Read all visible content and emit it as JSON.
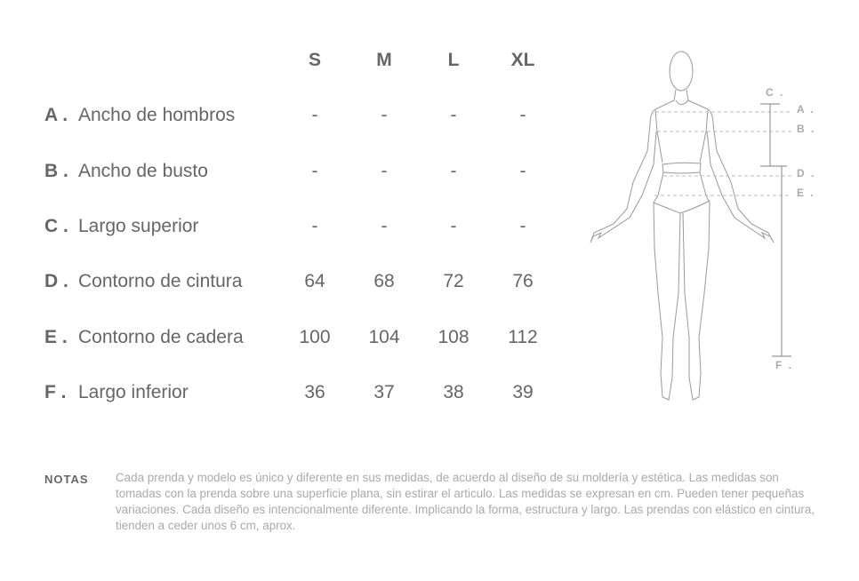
{
  "table": {
    "sizes": [
      "S",
      "M",
      "L",
      "XL"
    ],
    "rows": [
      {
        "letter": "A .",
        "name": "Ancho de hombros",
        "values": [
          "-",
          "-",
          "-",
          "-"
        ]
      },
      {
        "letter": "B .",
        "name": "Ancho de busto",
        "values": [
          "-",
          "-",
          "-",
          "-"
        ]
      },
      {
        "letter": "C .",
        "name": "Largo superior",
        "values": [
          "-",
          "-",
          "-",
          "-"
        ]
      },
      {
        "letter": "D .",
        "name": "Contorno de cintura",
        "values": [
          "64",
          "68",
          "72",
          "76"
        ]
      },
      {
        "letter": "E .",
        "name": "Contorno de cadera",
        "values": [
          "100",
          "104",
          "108",
          "112"
        ]
      },
      {
        "letter": "F .",
        "name": "Largo inferior",
        "values": [
          "36",
          "37",
          "38",
          "39"
        ]
      }
    ]
  },
  "figure": {
    "labels": {
      "A": "A .",
      "B": "B .",
      "C": "C .",
      "D": "D .",
      "E": "E .",
      "F": "F ."
    }
  },
  "notes": {
    "label": "NOTAS",
    "text": "Cada prenda y modelo es único y diferente en sus medidas, de acuerdo al diseño de su moldería y estética. Las medidas son tomadas con la prenda sobre una superficie plana, sin estirar el articulo. Las medidas se expresan en cm. Pueden tener pequeñas variaciones. Cada diseño es intencionalmente diferente. Implicando la forma, estructura y largo. Las prendas con elástico en cintura, tienden a ceder unos 6 cm, aprox."
  },
  "colors": {
    "text": "#666666",
    "muted": "#aaaaaa",
    "line": "#999999"
  }
}
